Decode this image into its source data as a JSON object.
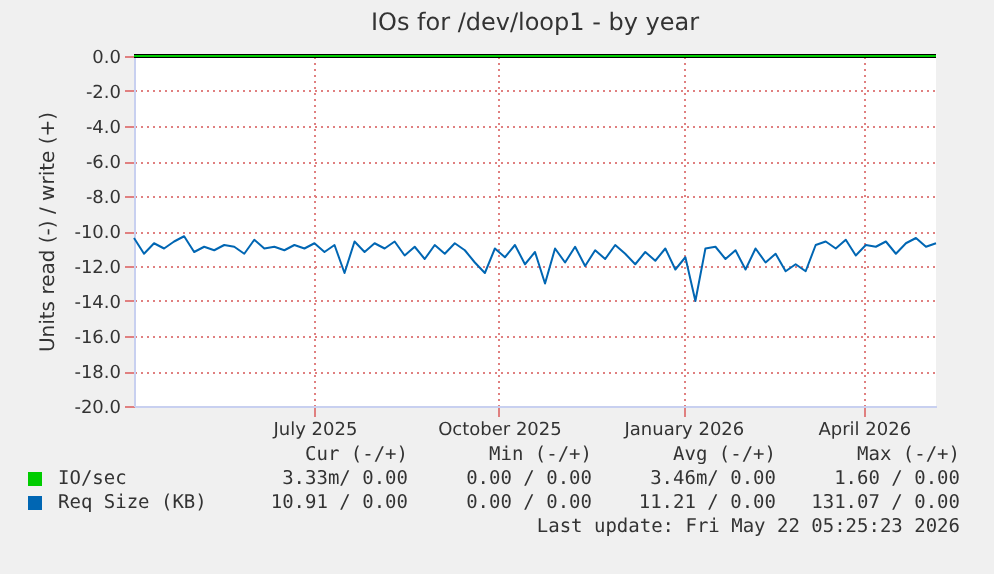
{
  "chart_data": {
    "type": "line",
    "title": "IOs for /dev/loop1 - by year",
    "ylabel": "Units read (-) / write (+)",
    "xlim": [
      "2025-04-17",
      "2026-05-22"
    ],
    "xticks": [
      {
        "value": "2025-07-16",
        "label": "July 2025"
      },
      {
        "value": "2025-10-16",
        "label": "October 2025"
      },
      {
        "value": "2026-01-16",
        "label": "January 2026"
      },
      {
        "value": "2026-04-16",
        "label": "April 2026"
      }
    ],
    "ylim": [
      -20,
      0
    ],
    "yticks": [
      {
        "value": 0,
        "label": "0.0"
      },
      {
        "value": -2,
        "label": "-2.0"
      },
      {
        "value": -4,
        "label": "-4.0"
      },
      {
        "value": -6,
        "label": "-6.0"
      },
      {
        "value": -8,
        "label": "-8.0"
      },
      {
        "value": -10,
        "label": "-10.0"
      },
      {
        "value": -12,
        "label": "-12.0"
      },
      {
        "value": -14,
        "label": "-14.0"
      },
      {
        "value": -16,
        "label": "-16.0"
      },
      {
        "value": -18,
        "label": "-18.0"
      },
      {
        "value": -20,
        "label": "-20.0"
      }
    ],
    "grid": true,
    "legend": "bottom",
    "ref_lines": [
      {
        "axis": "y",
        "value": 0,
        "color": "#000000"
      }
    ],
    "x": [
      "2025-04-17",
      "2025-04-22",
      "2025-04-27",
      "2025-05-02",
      "2025-05-07",
      "2025-05-12",
      "2025-05-17",
      "2025-05-22",
      "2025-05-27",
      "2025-06-01",
      "2025-06-06",
      "2025-06-11",
      "2025-06-16",
      "2025-06-21",
      "2025-06-26",
      "2025-07-01",
      "2025-07-06",
      "2025-07-11",
      "2025-07-16",
      "2025-07-21",
      "2025-07-26",
      "2025-07-31",
      "2025-08-05",
      "2025-08-10",
      "2025-08-15",
      "2025-08-20",
      "2025-08-25",
      "2025-08-30",
      "2025-09-04",
      "2025-09-09",
      "2025-09-14",
      "2025-09-19",
      "2025-09-24",
      "2025-09-29",
      "2025-10-04",
      "2025-10-09",
      "2025-10-14",
      "2025-10-19",
      "2025-10-24",
      "2025-10-29",
      "2025-11-03",
      "2025-11-08",
      "2025-11-13",
      "2025-11-18",
      "2025-11-23",
      "2025-11-28",
      "2025-12-03",
      "2025-12-08",
      "2025-12-13",
      "2025-12-18",
      "2025-12-23",
      "2025-12-28",
      "2026-01-02",
      "2026-01-07",
      "2026-01-12",
      "2026-01-17",
      "2026-01-22",
      "2026-01-27",
      "2026-02-01",
      "2026-02-06",
      "2026-02-11",
      "2026-02-16",
      "2026-02-21",
      "2026-02-26",
      "2026-03-03",
      "2026-03-08",
      "2026-03-13",
      "2026-03-18",
      "2026-03-23",
      "2026-03-28",
      "2026-04-02",
      "2026-04-07",
      "2026-04-12",
      "2026-04-17",
      "2026-04-22",
      "2026-04-27",
      "2026-05-02",
      "2026-05-07",
      "2026-05-12",
      "2026-05-17",
      "2026-05-22"
    ],
    "series": [
      {
        "name": "IO/sec",
        "color": "#00cc00",
        "x": [
          "2025-04-17",
          "2026-05-22"
        ],
        "values": [
          0,
          0
        ]
      },
      {
        "name": "Req Size (KB)",
        "color": "#0066b3",
        "values": [
          -10.4,
          -11.3,
          -10.7,
          -11.0,
          -10.6,
          -10.3,
          -11.2,
          -10.9,
          -11.1,
          -10.8,
          -10.9,
          -11.3,
          -10.5,
          -11.0,
          -10.9,
          -11.1,
          -10.8,
          -11.0,
          -10.7,
          -11.2,
          -10.8,
          -12.4,
          -10.6,
          -11.2,
          -10.7,
          -11.0,
          -10.6,
          -11.4,
          -10.9,
          -11.6,
          -10.8,
          -11.3,
          -10.7,
          -11.1,
          -11.8,
          -12.4,
          -11.0,
          -11.5,
          -10.8,
          -11.9,
          -11.2,
          -13.0,
          -11.0,
          -11.8,
          -10.9,
          -12.0,
          -11.1,
          -11.6,
          -10.8,
          -11.3,
          -11.9,
          -11.2,
          -11.7,
          -11.0,
          -12.2,
          -11.5,
          -14.0,
          -11.0,
          -10.9,
          -11.6,
          -11.1,
          -12.2,
          -11.0,
          -11.8,
          -11.3,
          -12.3,
          -11.9,
          -12.3,
          -10.8,
          -10.6,
          -11.0,
          -10.5,
          -11.4,
          -10.8,
          -10.9,
          -10.6,
          -11.3,
          -10.7,
          -10.4,
          -10.9,
          -10.7
        ]
      }
    ],
    "annotations": [
      "Cur (-/+)",
      "Min (-/+)",
      "Avg (-/+)",
      "Max (-/+)",
      "3.33m/ 0.00",
      "0.00 / 0.00",
      "3.46m/ 0.00",
      "1.60 / 0.00",
      "10.91 / 0.00",
      "0.00 / 0.00",
      "11.21 / 0.00",
      "131.07 / 0.00",
      "Last update: Fri May 22 05:25:23 2026"
    ]
  }
}
